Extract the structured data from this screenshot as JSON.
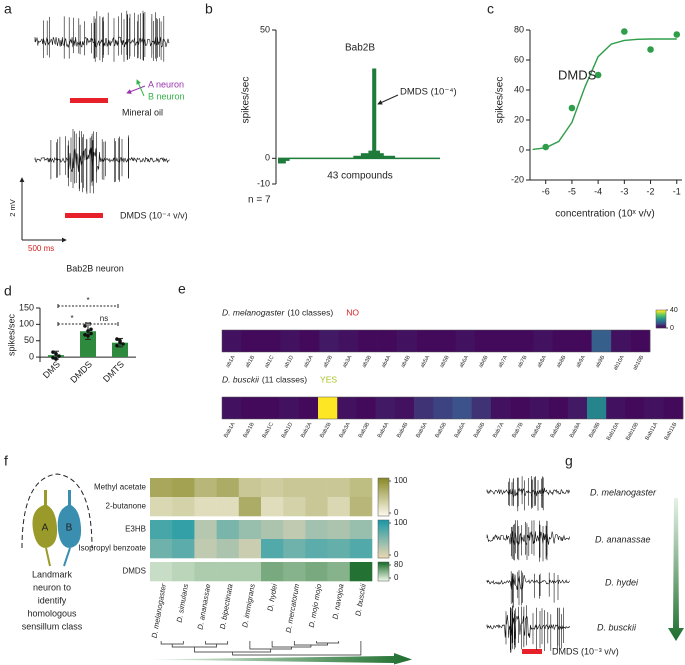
{
  "figure": {
    "panel_labels": [
      "a",
      "b",
      "c",
      "d",
      "e",
      "f",
      "g"
    ],
    "a": {
      "a_neuron": "A neuron",
      "b_neuron": "B neuron",
      "stim1": "Mineral oil",
      "stim2": "DMDS (10⁻⁴ v/v)",
      "scale_v": "2 mV",
      "scale_t": "500 ms",
      "neuron": "Bab2B neuron"
    },
    "f": {
      "neuron_a": "A",
      "neuron_b": "B",
      "caption": [
        "Landmark",
        "neuron to",
        "identify",
        "homologous",
        "sensillum class"
      ]
    },
    "g": {
      "species": [
        "D. melanogaster",
        "D. ananassae",
        "D. hydei",
        "D. busckii"
      ],
      "stimulus": "DMDS (10⁻³ v/v)"
    }
  },
  "chart_data": [
    {
      "type": "bar",
      "title": "Bab2B",
      "annotation": "DMDS (10⁻⁴)",
      "xlabel": "43 compounds",
      "ylabel": "spikes/sec",
      "note": "n = 7",
      "values": [
        -2,
        -2,
        -1,
        0,
        0,
        0,
        0,
        0,
        0,
        0,
        0,
        0,
        0,
        0,
        0,
        0,
        0,
        0,
        0,
        0,
        1,
        1,
        2,
        2,
        3,
        35,
        3,
        2,
        1,
        1,
        1,
        0,
        0,
        0,
        0,
        0,
        0,
        0,
        0,
        0,
        0,
        0,
        0
      ],
      "color": "#1e7b3a",
      "ylim": [
        -10,
        50
      ],
      "yticks": [
        -10,
        0,
        50
      ]
    },
    {
      "type": "scatter",
      "title": "DMDS",
      "xlabel": "concentration (10ˣ v/v)",
      "ylabel": "spikes/sec",
      "series": [
        {
          "mode": "markers",
          "color": "#2e9e4a",
          "x": [
            -6,
            -5,
            -4,
            -3,
            -2,
            -1
          ],
          "values": [
            2,
            28,
            50,
            79,
            67,
            77
          ]
        },
        {
          "mode": "line",
          "color": "#2e9e4a",
          "x": [
            -6.5,
            -6,
            -5.5,
            -5,
            -4.5,
            -4,
            -3.5,
            -3,
            -2.5,
            -2,
            -1.5,
            -1
          ],
          "values": [
            0.4,
            1.5,
            5.7,
            18.4,
            42.1,
            62.2,
            70.6,
            73.1,
            73.8,
            74,
            74,
            74
          ]
        }
      ],
      "xlim": [
        -6.6,
        -0.8
      ],
      "xticks": [
        -6,
        -5,
        -4,
        -3,
        -2,
        -1
      ],
      "ylim": [
        -20,
        80
      ],
      "yticks": [
        -20,
        0,
        20,
        40,
        60,
        80
      ]
    },
    {
      "type": "bar",
      "ylabel": "spikes/sec",
      "categories": [
        "DMS",
        "DMDS",
        "DMTS"
      ],
      "values": [
        6,
        79,
        44
      ],
      "errors": [
        12,
        25,
        13
      ],
      "points": [
        [
          15,
          10,
          3,
          -2,
          -6
        ],
        [
          95,
          80,
          72,
          68,
          65,
          85
        ],
        [
          55,
          45,
          40,
          35,
          50
        ]
      ],
      "comparisons": [
        {
          "pair": [
            "DMS",
            "DMTS"
          ],
          "label": "*"
        },
        {
          "pair": [
            "DMS",
            "DMDS"
          ],
          "label": "*"
        },
        {
          "pair": [
            "DMDS",
            "DMTS"
          ],
          "label": "ns"
        }
      ],
      "color": "#2e8b3e",
      "ylim": [
        -15,
        150
      ],
      "yticks": [
        0,
        50,
        100,
        150
      ]
    },
    {
      "type": "heatmap",
      "species": "D. melanogaster",
      "note": "(10 classes)",
      "answer": "NO",
      "answer_color": "#d42020",
      "categories": [
        "ab1A",
        "ab1B",
        "ab1C",
        "ab1D",
        "ab2A",
        "ab2B",
        "ab3A",
        "ab3B",
        "ab4A",
        "ab4B",
        "ab5A",
        "ab5B",
        "ab6A",
        "ab6B",
        "ab7A",
        "ab7B",
        "ab8A",
        "ab8B",
        "ab9A",
        "ab9B",
        "ab10A",
        "ab10B"
      ],
      "values": [
        2,
        1,
        1,
        2,
        1,
        3,
        2,
        1,
        1,
        2,
        1,
        1,
        2,
        1,
        1,
        1,
        2,
        1,
        1,
        12,
        2,
        1
      ],
      "colors": [
        "#440154",
        "#3b528b",
        "#21918c",
        "#5ec962",
        "#fde725"
      ],
      "zlim": [
        0,
        40
      ],
      "cticks": [
        40,
        0
      ]
    },
    {
      "type": "heatmap",
      "species": "D. busckii",
      "note": "(11 classes)",
      "answer": "YES",
      "answer_color": "#a8c228",
      "categories": [
        "Bab1A",
        "Bab1B",
        "Bab1C",
        "Bab1D",
        "Bab2A",
        "Bab2B",
        "Bab3A",
        "Bab3B",
        "Bab4A",
        "Bab4B",
        "Bab5A",
        "Bab5B",
        "Bab6A",
        "Bab6B",
        "Bab7A",
        "Bab7B",
        "Bab8A",
        "Bab8B",
        "Bab9A",
        "Bab9B",
        "Bab10A",
        "Bab10B",
        "Bab11A",
        "Bab11B"
      ],
      "values": [
        2,
        1,
        1,
        2,
        1,
        40,
        2,
        1,
        3,
        2,
        6,
        8,
        10,
        6,
        2,
        1,
        2,
        1,
        3,
        18,
        2,
        1,
        2,
        1
      ],
      "colors": [
        "#440154",
        "#3b528b",
        "#21918c",
        "#5ec962",
        "#fde725"
      ],
      "zlim": [
        0,
        40
      ]
    },
    {
      "type": "heatmap",
      "rows": [
        "Methyl acetate",
        "2-butanone",
        "E3HB",
        "Isopropyl benzoate",
        "DMDS"
      ],
      "columns": [
        "D. melanogaster",
        "D. simulans",
        "D. ananassae",
        "D. bipectinata",
        "D. immigrans",
        "D. hydei",
        "D. mercatorum",
        "D. mojo mojo",
        "D. navojoa",
        "D. busckii"
      ],
      "values": [
        [
          75,
          80,
          60,
          70,
          45,
          40,
          45,
          45,
          45,
          55
        ],
        [
          30,
          35,
          25,
          25,
          70,
          25,
          35,
          45,
          30,
          60
        ],
        [
          80,
          90,
          25,
          55,
          40,
          30,
          20,
          35,
          30,
          40
        ],
        [
          60,
          70,
          20,
          30,
          15,
          75,
          60,
          70,
          65,
          75
        ],
        [
          15,
          20,
          25,
          25,
          25,
          45,
          40,
          45,
          40,
          78
        ]
      ],
      "scales": [
        {
          "rows": [
            0,
            1
          ],
          "colors": [
            "#fbf8ec",
            "#8c8c2c"
          ],
          "zlim": [
            0,
            100
          ],
          "ticks": [
            100,
            0
          ]
        },
        {
          "rows": [
            2,
            3
          ],
          "colors": [
            "#e8d6b2",
            "#1f9aa6"
          ],
          "zlim": [
            0,
            100
          ],
          "ticks": [
            100,
            0
          ]
        },
        {
          "rows": [
            4
          ],
          "colors": [
            "#eef7e8",
            "#1e6e2e"
          ],
          "zlim": [
            0,
            80
          ],
          "ticks": [
            80,
            0
          ]
        }
      ]
    }
  ]
}
